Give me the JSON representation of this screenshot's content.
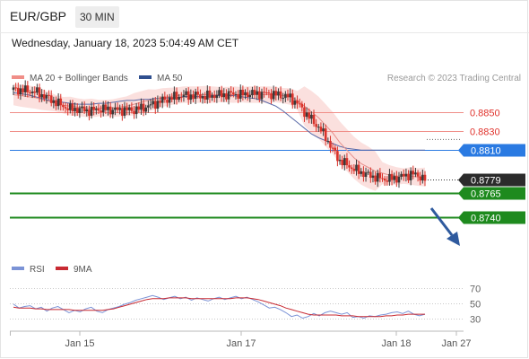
{
  "header": {
    "pair": "EUR/GBP",
    "timeframe": "30 MIN",
    "datetime": "Wednesday, January 18, 2023 5:04:49 AM CET"
  },
  "legend": {
    "ma20": "MA 20 + Bollinger Bands",
    "ma50": "MA 50",
    "rsi": "RSI",
    "ma9": "9MA",
    "copyright": "Research © 2023 Trading Central"
  },
  "colors": {
    "bull": "#3a3a3a",
    "bear": "#d9322a",
    "bollinger": "#f7c6c3",
    "ma20": "#e7908c",
    "ma50": "#5a6aa8",
    "resistance": "#f08e88",
    "pivot": "#2a7ae2",
    "support": "#1e8a1e",
    "arrow": "#2f5a9e",
    "rsi": "#7b93d6",
    "rsi_ma": "#c82a32"
  },
  "chart_data": [
    {
      "type": "candlestick",
      "title": "EUR/GBP 30 MIN",
      "x_ticks": [
        "Jan 15",
        "Jan 17",
        "Jan 18",
        "Jan 27"
      ],
      "y_range": [
        0.8725,
        0.8875
      ],
      "current_price": 0.8779,
      "levels": [
        {
          "label": "0.8850",
          "value": 0.885,
          "kind": "resistance"
        },
        {
          "label": "0.8830",
          "value": 0.883,
          "kind": "resistance"
        },
        {
          "label": "0.8810",
          "value": 0.881,
          "kind": "pivot"
        },
        {
          "label": "0.8779",
          "value": 0.8779,
          "kind": "last"
        },
        {
          "label": "0.8765",
          "value": 0.8765,
          "kind": "support"
        },
        {
          "label": "0.8740",
          "value": 0.874,
          "kind": "support"
        }
      ],
      "forecast": {
        "from": 0.8779,
        "to": 0.874,
        "direction": "down"
      },
      "close": [
        0.8873,
        0.8873,
        0.8872,
        0.8871,
        0.8868,
        0.8864,
        0.886,
        0.8856,
        0.8853,
        0.8853,
        0.8852,
        0.8851,
        0.8853,
        0.8853,
        0.8852,
        0.8852,
        0.8852,
        0.8852,
        0.8854,
        0.8856,
        0.8859,
        0.8862,
        0.8864,
        0.8866,
        0.8867,
        0.8867,
        0.8867,
        0.8866,
        0.8867,
        0.8868,
        0.8868,
        0.8869,
        0.8868,
        0.8869,
        0.8869,
        0.8869,
        0.8869,
        0.8868,
        0.8867,
        0.8865,
        0.8859,
        0.885,
        0.8842,
        0.8834,
        0.8824,
        0.881,
        0.8799,
        0.8795,
        0.879,
        0.8787,
        0.8784,
        0.8782,
        0.878,
        0.878,
        0.8781,
        0.8783,
        0.8785,
        0.8784,
        0.8779
      ],
      "ma20": [
        0.8868,
        0.8867,
        0.8866,
        0.8865,
        0.8863,
        0.8861,
        0.8859,
        0.8857,
        0.8856,
        0.8855,
        0.8854,
        0.8854,
        0.8854,
        0.8854,
        0.8854,
        0.8855,
        0.8856,
        0.8858,
        0.886,
        0.8862,
        0.8863,
        0.8865,
        0.8866,
        0.8867,
        0.8868,
        0.8868,
        0.8868,
        0.8868,
        0.8868,
        0.8868,
        0.8868,
        0.8868,
        0.8868,
        0.8868,
        0.8868,
        0.8868,
        0.8868,
        0.8868,
        0.8867,
        0.8866,
        0.8862,
        0.8856,
        0.885,
        0.8844,
        0.8836,
        0.8828,
        0.8818,
        0.881,
        0.8802,
        0.8796,
        0.8792,
        0.8788,
        0.8786,
        0.8784,
        0.8783,
        0.8783,
        0.8783,
        0.8782,
        0.8782
      ],
      "ma50": [
        0.887,
        0.8869,
        0.8868,
        0.8866,
        0.8864,
        0.8862,
        0.8861,
        0.886,
        0.8859,
        0.8858,
        0.8858,
        0.8858,
        0.8859,
        0.8859,
        0.886,
        0.8861,
        0.8862,
        0.8862,
        0.8863,
        0.8863,
        0.8864,
        0.8864,
        0.8865,
        0.8865,
        0.8866,
        0.8866,
        0.8866,
        0.8866,
        0.8867,
        0.8867,
        0.8867,
        0.8867,
        0.8866,
        0.8865,
        0.8864,
        0.8862,
        0.8859,
        0.8856,
        0.8851,
        0.8845,
        0.8839,
        0.8833,
        0.8827,
        0.8823,
        0.882,
        0.8817,
        0.8814,
        0.8812,
        0.8811,
        0.881,
        0.881,
        0.881,
        0.881,
        0.881,
        0.881,
        0.881,
        0.881,
        0.881,
        0.881
      ]
    },
    {
      "type": "line",
      "title": "RSI",
      "y_ticks": [
        "70",
        "50",
        "30"
      ],
      "y_range": [
        20,
        80
      ],
      "series": [
        {
          "name": "RSI",
          "values": [
            49,
            44,
            46,
            47,
            43,
            45,
            40,
            44,
            46,
            42,
            38,
            41,
            39,
            43,
            45,
            40,
            38,
            42,
            44,
            46,
            49,
            51,
            54,
            56,
            58,
            60,
            58,
            55,
            57,
            59,
            56,
            58,
            54,
            57,
            55,
            53,
            56,
            58,
            55,
            57,
            59,
            56,
            58,
            55,
            52,
            48,
            44,
            45,
            42,
            38,
            33,
            35,
            31,
            33,
            37,
            34,
            38,
            40,
            38,
            36,
            38,
            32,
            33,
            31,
            34,
            33,
            35,
            36,
            38,
            39,
            37,
            40,
            36,
            34,
            36
          ]
        },
        {
          "name": "9MA",
          "values": [
            45,
            44,
            44,
            44,
            43,
            43,
            42,
            42,
            42,
            42,
            42,
            41,
            41,
            41,
            41,
            41,
            41,
            42,
            43,
            45,
            47,
            49,
            51,
            53,
            55,
            56,
            56,
            56,
            57,
            57,
            57,
            57,
            56,
            56,
            56,
            56,
            56,
            56,
            56,
            56,
            57,
            57,
            57,
            56,
            55,
            53,
            51,
            49,
            47,
            44,
            42,
            40,
            38,
            36,
            35,
            35,
            35,
            35,
            35,
            34,
            34,
            34,
            33,
            33,
            33,
            33,
            33,
            34,
            34,
            35,
            35,
            36,
            36,
            36,
            36
          ]
        }
      ]
    }
  ]
}
